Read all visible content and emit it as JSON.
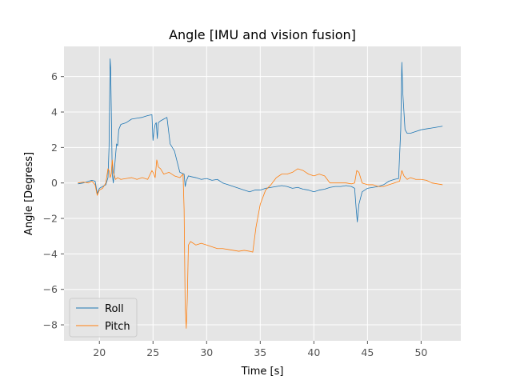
{
  "chart_data": {
    "type": "line",
    "title": "Angle [IMU and vision fusion]",
    "xlabel": "Time [s]",
    "ylabel": "Angle [Degress]",
    "xlim": [
      16.7,
      53.7
    ],
    "ylim": [
      -8.9,
      7.7
    ],
    "xticks": [
      20,
      25,
      30,
      35,
      40,
      45,
      50
    ],
    "yticks": [
      -8,
      -6,
      -4,
      -2,
      0,
      2,
      4,
      6
    ],
    "xtick_labels": [
      "20",
      "25",
      "30",
      "35",
      "40",
      "45",
      "50"
    ],
    "ytick_labels": [
      "−8",
      "−6",
      "−4",
      "−2",
      "0",
      "2",
      "4",
      "6"
    ],
    "grid": true,
    "legend_position": "lower-left",
    "series": [
      {
        "name": "Roll",
        "color": "#1f77b4",
        "x": [
          18.0,
          18.5,
          19.0,
          19.3,
          19.6,
          19.8,
          20.0,
          20.3,
          20.6,
          20.8,
          20.9,
          21.0,
          21.05,
          21.1,
          21.2,
          21.3,
          21.5,
          21.6,
          21.7,
          21.8,
          22.0,
          22.5,
          23.0,
          23.5,
          24.0,
          24.5,
          24.9,
          25.0,
          25.1,
          25.2,
          25.3,
          25.4,
          25.5,
          25.7,
          26.0,
          26.3,
          26.6,
          27.0,
          27.5,
          27.9,
          28.0,
          28.1,
          28.3,
          28.6,
          29.0,
          29.5,
          30.0,
          30.5,
          31.0,
          31.5,
          32.0,
          32.5,
          33.0,
          33.5,
          34.0,
          34.5,
          35.0,
          35.5,
          36.0,
          36.5,
          37.0,
          37.5,
          38.0,
          38.5,
          39.0,
          39.5,
          40.0,
          40.5,
          41.0,
          41.5,
          42.0,
          42.5,
          43.0,
          43.5,
          43.8,
          43.95,
          44.05,
          44.2,
          44.5,
          45.0,
          45.5,
          46.0,
          46.5,
          47.0,
          47.5,
          47.9,
          48.1,
          48.2,
          48.3,
          48.5,
          48.7,
          49.0,
          49.5,
          50.0,
          50.5,
          51.0,
          51.5,
          52.0
        ],
        "values": [
          -0.05,
          0.0,
          0.1,
          0.15,
          0.1,
          -0.6,
          -0.3,
          -0.2,
          -0.1,
          0.3,
          2.0,
          7.0,
          6.5,
          4.5,
          0.5,
          0.0,
          1.5,
          2.2,
          2.1,
          3.0,
          3.3,
          3.4,
          3.6,
          3.65,
          3.7,
          3.8,
          3.85,
          2.4,
          3.0,
          3.3,
          3.4,
          2.5,
          3.4,
          3.5,
          3.6,
          3.7,
          2.2,
          1.8,
          0.6,
          0.5,
          -0.2,
          0.1,
          0.4,
          0.35,
          0.3,
          0.2,
          0.25,
          0.15,
          0.2,
          0.0,
          -0.1,
          -0.2,
          -0.3,
          -0.4,
          -0.5,
          -0.4,
          -0.4,
          -0.3,
          -0.25,
          -0.2,
          -0.15,
          -0.2,
          -0.3,
          -0.25,
          -0.35,
          -0.4,
          -0.5,
          -0.4,
          -0.35,
          -0.25,
          -0.2,
          -0.2,
          -0.15,
          -0.2,
          -0.3,
          -1.5,
          -2.2,
          -1.2,
          -0.5,
          -0.3,
          -0.25,
          -0.2,
          -0.1,
          0.1,
          0.2,
          0.25,
          3.0,
          6.8,
          5.0,
          3.0,
          2.8,
          2.8,
          2.9,
          3.0,
          3.05,
          3.1,
          3.15,
          3.2
        ]
      },
      {
        "name": "Pitch",
        "color": "#ff7f0e",
        "x": [
          18.0,
          18.5,
          19.0,
          19.3,
          19.6,
          19.8,
          20.0,
          20.3,
          20.6,
          20.8,
          20.9,
          21.0,
          21.1,
          21.2,
          21.3,
          21.5,
          21.7,
          22.0,
          22.5,
          23.0,
          23.5,
          24.0,
          24.5,
          24.9,
          25.0,
          25.2,
          25.35,
          25.5,
          25.7,
          26.0,
          26.5,
          27.0,
          27.5,
          27.8,
          27.9,
          28.0,
          28.1,
          28.2,
          28.3,
          28.5,
          29.0,
          29.5,
          30.0,
          30.5,
          31.0,
          31.5,
          32.0,
          32.5,
          33.0,
          33.5,
          34.0,
          34.3,
          34.6,
          35.0,
          35.5,
          36.0,
          36.5,
          37.0,
          37.5,
          38.0,
          38.5,
          39.0,
          39.5,
          40.0,
          40.5,
          41.0,
          41.5,
          42.0,
          42.5,
          43.0,
          43.5,
          43.8,
          44.0,
          44.2,
          44.5,
          45.0,
          45.5,
          46.0,
          46.5,
          47.0,
          47.5,
          48.0,
          48.2,
          48.4,
          48.7,
          49.0,
          49.5,
          50.0,
          50.5,
          51.0,
          51.5,
          52.0
        ],
        "values": [
          0.0,
          0.05,
          0.0,
          0.1,
          -0.1,
          -0.7,
          -0.4,
          -0.3,
          0.0,
          0.8,
          0.7,
          0.3,
          0.5,
          1.3,
          0.6,
          0.2,
          0.3,
          0.2,
          0.25,
          0.3,
          0.2,
          0.3,
          0.2,
          0.7,
          0.6,
          0.3,
          1.3,
          0.9,
          0.8,
          0.5,
          0.6,
          0.4,
          0.3,
          0.5,
          -1.5,
          -7.0,
          -8.2,
          -6.5,
          -3.5,
          -3.3,
          -3.5,
          -3.4,
          -3.5,
          -3.6,
          -3.7,
          -3.7,
          -3.75,
          -3.8,
          -3.85,
          -3.8,
          -3.85,
          -3.9,
          -2.5,
          -1.2,
          -0.4,
          -0.1,
          0.3,
          0.5,
          0.5,
          0.6,
          0.8,
          0.7,
          0.5,
          0.4,
          0.5,
          0.4,
          0.0,
          0.0,
          0.0,
          0.0,
          -0.05,
          0.0,
          0.7,
          0.6,
          0.0,
          -0.1,
          -0.1,
          -0.2,
          -0.2,
          -0.1,
          0.0,
          0.1,
          0.7,
          0.4,
          0.2,
          0.3,
          0.2,
          0.2,
          0.15,
          0.0,
          -0.05,
          -0.1
        ]
      }
    ]
  }
}
